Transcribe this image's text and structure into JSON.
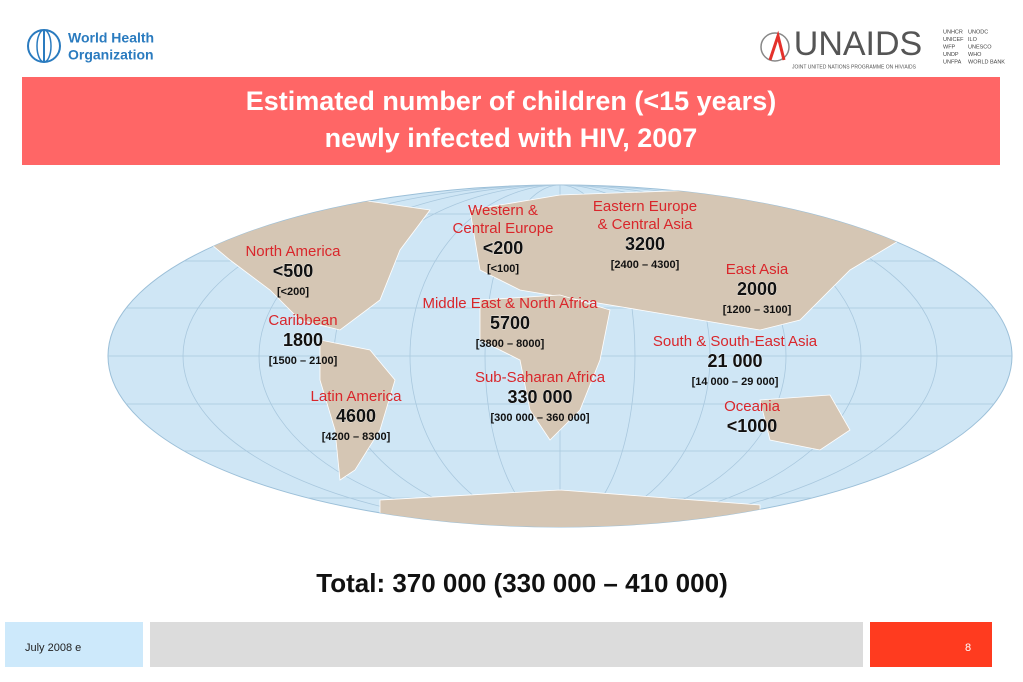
{
  "header": {
    "who_logo": [
      "World Health",
      "Organization"
    ],
    "unaids_logo": {
      "name": "UNAIDS",
      "subtitle": "JOINT UNITED NATIONS PROGRAMME ON HIV/AIDS",
      "cosponsors": [
        [
          "UNHCR",
          "UNICEF",
          "WFP",
          "UNDP",
          "UNFPA"
        ],
        [
          "UNODC",
          "ILO",
          "UNESCO",
          "WHO",
          "WORLD BANK"
        ]
      ]
    }
  },
  "title": [
    "Estimated number of children (<15 years)",
    "newly infected with HIV, 2007"
  ],
  "regions": [
    {
      "name": [
        "North America"
      ],
      "value": "<500",
      "range": "[<200]"
    },
    {
      "name": [
        "Caribbean"
      ],
      "value": "1800",
      "range": "[1500 – 2100]"
    },
    {
      "name": [
        "Latin America"
      ],
      "value": "4600",
      "range": "[4200 – 8300]"
    },
    {
      "name": [
        "Western &",
        "Central Europe"
      ],
      "value": "<200",
      "range": "[<100]"
    },
    {
      "name": [
        "Eastern Europe",
        "& Central Asia"
      ],
      "value": "3200",
      "range": "[2400 – 4300]"
    },
    {
      "name": [
        "East Asia"
      ],
      "value": "2000",
      "range": "[1200 – 3100]"
    },
    {
      "name": [
        "Middle East & North Africa"
      ],
      "value": "5700",
      "range": "[3800 – 8000]"
    },
    {
      "name": [
        "Sub-Saharan Africa"
      ],
      "value": "330 000",
      "range": "[300 000 – 360 000]"
    },
    {
      "name": [
        "South & South-East Asia"
      ],
      "value": "21 000",
      "range": "[14 000 – 29 000]"
    },
    {
      "name": [
        "Oceania"
      ],
      "value": "<1000"
    }
  ],
  "total": "Total: 370 000 (330 000 – 410 000)",
  "footer": {
    "date": "July 2008  e",
    "page": "8"
  }
}
